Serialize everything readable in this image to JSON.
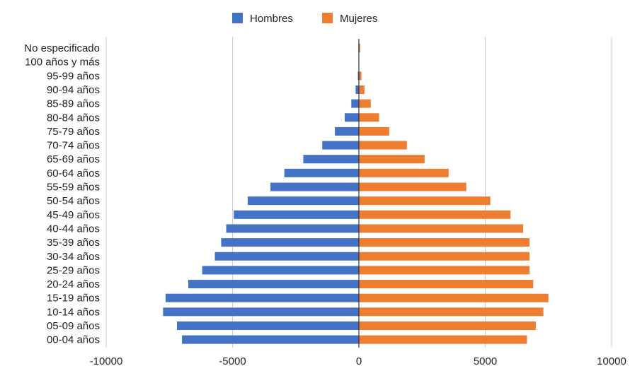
{
  "chart_data": {
    "type": "bar",
    "orientation": "horizontal",
    "stacked_diverging": true,
    "categories": [
      "No especificado",
      "100 años y más",
      "95-99 años",
      "90-94 años",
      "85-89 años",
      "80-84 años",
      "75-79 años",
      "70-74 años",
      "65-69 años",
      "60-64 años",
      "55-59 años",
      "50-54 años",
      "45-49 años",
      "40-44 años",
      "35-39 años",
      "30-34 años",
      "25-29 años",
      "20-24 años",
      "15-19 años",
      "10-14 años",
      "05-09 años",
      "00-04 años"
    ],
    "series": [
      {
        "name": "Hombres",
        "color": "#4472c4",
        "values": [
          -20,
          -5,
          -40,
          -130,
          -300,
          -560,
          -950,
          -1450,
          -2200,
          -2950,
          -3500,
          -4400,
          -4950,
          -5250,
          -5450,
          -5700,
          -6200,
          -6750,
          -7650,
          -7750,
          -7200,
          -7000
        ]
      },
      {
        "name": "Mujeres",
        "color": "#ed7d31",
        "values": [
          50,
          10,
          100,
          220,
          470,
          800,
          1200,
          1900,
          2600,
          3550,
          4250,
          5200,
          6000,
          6500,
          6750,
          6750,
          6750,
          6900,
          7500,
          7300,
          7000,
          6650
        ]
      }
    ],
    "xlim": [
      -10000,
      10000
    ],
    "xticks": [
      "-10000",
      "-5000",
      "0",
      "5000",
      "10000"
    ],
    "xtick_values": [
      -10000,
      -5000,
      0,
      5000,
      10000
    ],
    "grid": true,
    "legend_position": "top"
  }
}
